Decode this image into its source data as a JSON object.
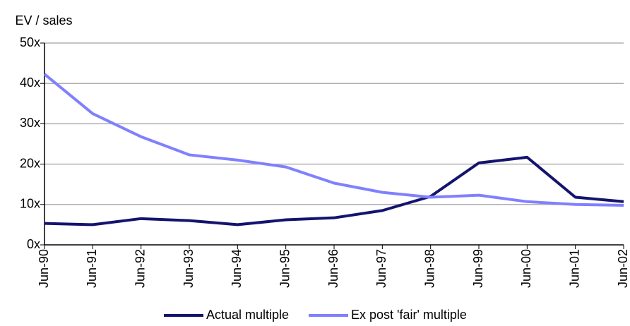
{
  "chart_data": {
    "type": "line",
    "y_label": "EV / sales",
    "categories": [
      "Jun-90",
      "Jun-91",
      "Jun-92",
      "Jun-93",
      "Jun-94",
      "Jun-95",
      "Jun-96",
      "Jun-97",
      "Jun-98",
      "Jun-99",
      "Jun-00",
      "Jun-01",
      "Jun-02"
    ],
    "series": [
      {
        "name": "Actual multiple",
        "color": "#14146e",
        "values": [
          5.3,
          5.0,
          6.5,
          6.0,
          5.0,
          6.2,
          6.7,
          8.5,
          12.0,
          20.3,
          21.7,
          11.8,
          10.7
        ]
      },
      {
        "name": "Ex post 'fair' multiple",
        "color": "#8080ff",
        "values": [
          42.3,
          32.5,
          26.8,
          22.3,
          21.0,
          19.3,
          15.3,
          13.0,
          11.8,
          12.3,
          10.7,
          10.0,
          9.8
        ]
      }
    ],
    "ylim": [
      0,
      50
    ],
    "yticks": [
      {
        "value": 0,
        "label": "0x"
      },
      {
        "value": 10,
        "label": "10x"
      },
      {
        "value": 20,
        "label": "20x"
      },
      {
        "value": 30,
        "label": "30x"
      },
      {
        "value": 40,
        "label": "40x"
      },
      {
        "value": 50,
        "label": "50x"
      }
    ],
    "grid": true,
    "legend": "bottom"
  }
}
